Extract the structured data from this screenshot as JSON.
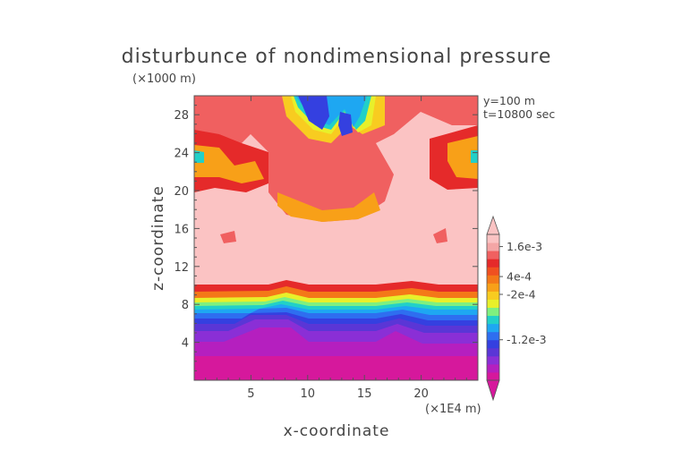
{
  "chart_data": {
    "type": "heatmap",
    "title": "disturbunce of nondimensional pressure",
    "z_unit_label": "(×1000 m)",
    "x_unit_label": "(×1E4 m)",
    "xlabel": "x-coordinate",
    "ylabel": "z-coordinate",
    "annotations": [
      "y=100 m",
      "t=10800 sec"
    ],
    "xlim": [
      0,
      25
    ],
    "ylim": [
      0,
      30
    ],
    "x_ticks": [
      5,
      10,
      15,
      20
    ],
    "x_tick_labels": [
      "5",
      "10",
      "15",
      "20"
    ],
    "y_ticks": [
      4,
      8,
      12,
      16,
      20,
      24,
      28
    ],
    "y_tick_labels": [
      "4",
      "8",
      "12",
      "16",
      "20",
      "24",
      "28"
    ],
    "colorbar": {
      "colors": [
        "#d6189c",
        "#b51fbf",
        "#8a2fd6",
        "#5a36d6",
        "#3440e0",
        "#2e6ef0",
        "#1ea7f2",
        "#22d0c8",
        "#7ff07f",
        "#e8f02a",
        "#f8cc20",
        "#f8a018",
        "#f47818",
        "#f05020",
        "#e52a2a",
        "#f06060",
        "#f4a6a6",
        "#fbc3c3"
      ],
      "labels": [
        "1.6e-3",
        "4e-4",
        "-2e-4",
        "-1.2e-3"
      ],
      "label_values": [
        0.0016,
        0.0004,
        -0.0002,
        -0.0012
      ]
    }
  }
}
